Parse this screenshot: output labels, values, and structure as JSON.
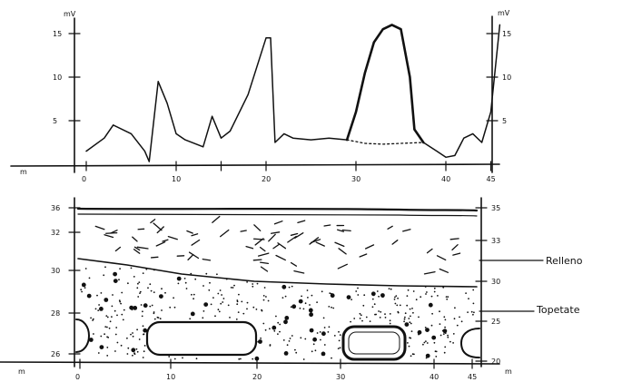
{
  "chart_data": [
    {
      "type": "line",
      "title": "",
      "xlabel": "m",
      "ylabel": "mV",
      "y2label": "mV",
      "xlim": [
        -5,
        46
      ],
      "ylim": [
        0,
        16
      ],
      "x_ticks": [
        "0",
        "10",
        "",
        "20",
        "30",
        "40",
        "45"
      ],
      "y_ticks_left": [
        "5",
        "10",
        "15"
      ],
      "y_ticks_right": [
        "5",
        "10",
        "15"
      ],
      "series": [
        {
          "name": "",
          "style": "thin",
          "x": [
            0,
            2,
            3,
            5,
            6.5,
            7,
            8,
            9,
            10,
            11,
            13,
            14,
            15,
            16,
            18,
            20,
            20.5,
            21,
            22,
            23,
            25,
            27,
            29
          ],
          "y": [
            1.5,
            3,
            4.5,
            3.5,
            1.5,
            0.3,
            9.5,
            7,
            3.5,
            2.8,
            2,
            5.5,
            3,
            3.8,
            8,
            14.5,
            14.5,
            2.5,
            3.5,
            3,
            2.8,
            3,
            2.8
          ]
        },
        {
          "name": "",
          "style": "bold",
          "x": [
            29,
            30,
            31,
            32,
            33,
            34,
            35,
            36,
            36.5,
            37.5
          ],
          "y": [
            2.8,
            6,
            10.5,
            14,
            15.5,
            16,
            15.5,
            10,
            4,
            2.5
          ]
        },
        {
          "name": "",
          "style": "dotted",
          "x": [
            29,
            31,
            33,
            35,
            37.5
          ],
          "y": [
            2.8,
            2.4,
            2.3,
            2.4,
            2.5
          ]
        },
        {
          "name": "",
          "style": "thin",
          "x": [
            37.5,
            39,
            40,
            41,
            42,
            43,
            44,
            45,
            46
          ],
          "y": [
            2.5,
            1.5,
            0.8,
            1,
            3,
            3.5,
            2.5,
            6,
            16
          ]
        }
      ]
    },
    {
      "type": "diagram",
      "title": "",
      "xlabel": "m",
      "ylabel": "m",
      "xlim": [
        -5,
        46
      ],
      "ylim": [
        20,
        36
      ],
      "x_ticks": [
        "0",
        "10",
        "20",
        "30",
        "40",
        "45"
      ],
      "y_ticks_left": [
        "36",
        "32",
        "30",
        "28",
        "26"
      ],
      "y_ticks_right": [
        "35",
        "33",
        "30",
        "25",
        "20"
      ],
      "layers": [
        {
          "name": "Relleno",
          "label": "Relleno"
        },
        {
          "name": "Topetate",
          "label": "Topetate"
        }
      ]
    }
  ],
  "labels": {
    "relleno": "Relleno",
    "topetate": "Topetate",
    "mv_left": "mV",
    "mv_right": "mV",
    "m_unit": "m"
  }
}
